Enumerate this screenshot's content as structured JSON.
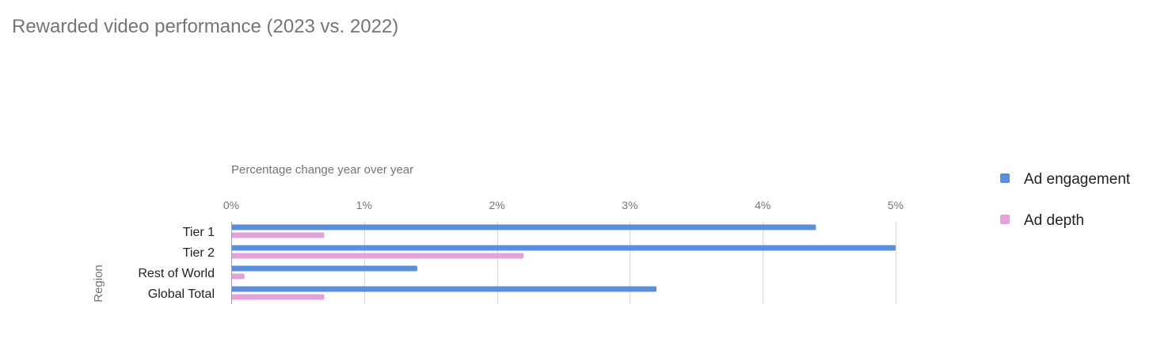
{
  "chart_data": {
    "type": "bar",
    "orientation": "horizontal",
    "title": "Rewarded video performance (2023 vs. 2022)",
    "xlabel": "Percentage change year over year",
    "ylabel": "Region",
    "categories": [
      "Tier 1",
      "Tier 2",
      "Rest of World",
      "Global Total"
    ],
    "series": [
      {
        "name": "Ad engagement",
        "color": "#5b8fde",
        "values": [
          4.4,
          5.0,
          1.4,
          3.2
        ]
      },
      {
        "name": "Ad depth",
        "color": "#e2a3db",
        "values": [
          0.7,
          2.2,
          0.1,
          0.7
        ]
      }
    ],
    "xlim": [
      0,
      5
    ],
    "x_ticks": [
      0,
      1,
      2,
      3,
      4,
      5
    ],
    "x_tick_labels": [
      "0%",
      "1%",
      "2%",
      "3%",
      "4%",
      "5%"
    ],
    "x_axis_position": "top",
    "grid": true,
    "legend_position": "right"
  },
  "colors": {
    "title": "#757575",
    "axis_text": "#757575",
    "category_text": "#222222",
    "legend_text": "#222222",
    "grid": "#d9d9d9",
    "axis_line": "#9e9e9e"
  }
}
